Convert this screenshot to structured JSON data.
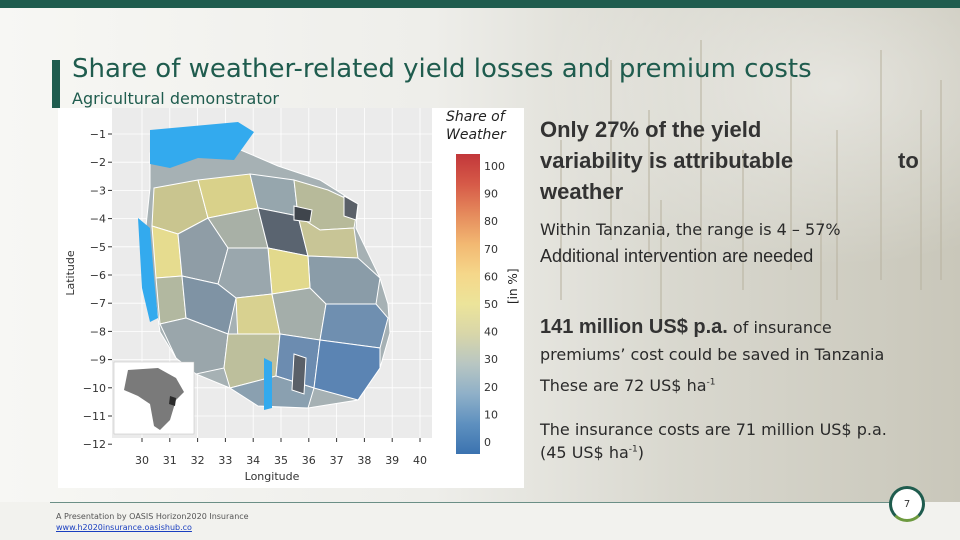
{
  "slide": {
    "title": "Share of weather-related yield losses and premium costs",
    "subtitle": "Agricultural demonstrator",
    "page_number": "7"
  },
  "figure": {
    "colorbar_title_line1": "Share of",
    "colorbar_title_line2": "Weather",
    "colorbar_unit": "[in %]",
    "colorbar_ticks": [
      "0",
      "10",
      "20",
      "30",
      "40",
      "50",
      "60",
      "70",
      "80",
      "90",
      "100"
    ],
    "colorbar_colors": [
      "#3b73b0",
      "#5e90bf",
      "#8fb0c8",
      "#b8c6c2",
      "#d8d6a9",
      "#ece49a",
      "#f5d78a",
      "#f2b872",
      "#e58a5c",
      "#d65a48",
      "#c2373a"
    ],
    "y_axis_label": "Latitude",
    "x_axis_label": "Longitude",
    "y_ticks": [
      "−1",
      "−2",
      "−3",
      "−4",
      "−5",
      "−6",
      "−7",
      "−8",
      "−9",
      "−10",
      "−11",
      "−12"
    ],
    "x_ticks": [
      "30",
      "31",
      "32",
      "33",
      "34",
      "35",
      "36",
      "37",
      "38",
      "39",
      "40"
    ]
  },
  "body": {
    "headline_main": "Only 27% of the yield variability is attributable",
    "headline_to": "to",
    "headline_end": "weather",
    "range_line": "Within Tanzania, the range is 4 – 57%",
    "intervention_line": "Additional intervention are needed",
    "savings_bold": "141 million US$ p.a.",
    "savings_rest": " of insurance",
    "savings_line2": "premiums’ cost could be saved in Tanzania",
    "per_ha_prefix": "These are 72 US$ ha",
    "per_ha_sup": "-1",
    "costs_line1": "The insurance costs are 71 million US$ p.a.",
    "costs_line2_prefix": "(45 US$ ha",
    "costs_line2_sup": "-1",
    "costs_line2_suffix": ")"
  },
  "footer": {
    "line1": "A Presentation by OASIS Horizon2020 Insurance",
    "link": "www.h2020insurance.oasishub.co"
  },
  "colors": {
    "brand": "#1f5c4e",
    "accent_green": "#6d9a3f",
    "water": "#33aaee",
    "map_background": "#e9e9e9"
  }
}
